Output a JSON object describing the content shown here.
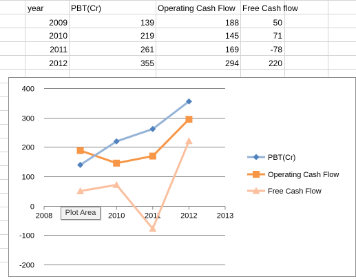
{
  "sheet": {
    "headers": [
      "year",
      "PBT(Cr)",
      "Operating Cash Flow",
      "Free Cash flow"
    ],
    "rows": [
      [
        "2009",
        "139",
        "188",
        "50"
      ],
      [
        "2010",
        "219",
        "145",
        "71"
      ],
      [
        "2011",
        "261",
        "169",
        "-78"
      ],
      [
        "2012",
        "355",
        "294",
        "220"
      ]
    ],
    "grid_color": "#d4d4d4"
  },
  "tooltip": "Plot Area",
  "chart_data": {
    "type": "line",
    "x": [
      2009,
      2010,
      2011,
      2012
    ],
    "xlim": [
      2008,
      2013
    ],
    "ylim": [
      -200,
      400
    ],
    "xticks": [
      "2008",
      "2009",
      "2010",
      "2011",
      "2012",
      "2013"
    ],
    "yticks": [
      "-200",
      "-100",
      "0",
      "100",
      "200",
      "300",
      "400"
    ],
    "title": "",
    "xlabel": "",
    "ylabel": "",
    "grid": "horizontal",
    "legend": "right",
    "series": [
      {
        "name": "PBT(Cr)",
        "values": [
          139,
          219,
          261,
          355
        ],
        "color": "#95b3d7",
        "marker": "diamond",
        "marker_color": "#4f81bd"
      },
      {
        "name": "Operating Cash Flow",
        "values": [
          188,
          145,
          169,
          294
        ],
        "color": "#f79646",
        "marker": "square",
        "marker_color": "#f79646"
      },
      {
        "name": "Free Cash Flow",
        "values": [
          50,
          71,
          -78,
          220
        ],
        "color": "#fac09f",
        "marker": "triangle",
        "marker_color": "#fac09f"
      }
    ]
  }
}
